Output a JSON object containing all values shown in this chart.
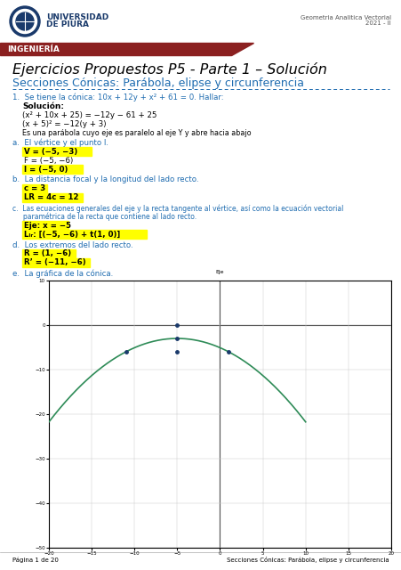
{
  "title_main": "Ejercicios Propuestos P5 - Parte 1 – Solución",
  "subtitle": "Secciones Cónicas: Parábola, elipse y circunferencia",
  "header_ingenieria": "INGENIERÍA",
  "header_course": "Geometria Analitica Vectorial\n2021 - II",
  "univ_name1": "UNIVERSIDAD",
  "univ_name2": "DE PIURA",
  "problem_text": "1.  Se tiene la cónica: 10x + 12y + x² + 61 = 0. Hallar:",
  "solution_label": "Solución:",
  "step1": "(x² + 10x + 25) = −12y − 61 + 25",
  "step2": "(x + 5)² = −12(y + 3)",
  "step3": "Es una parábola cuyo eje es paralelo al eje Y y abre hacia abajo",
  "part_a_label": "a.  El vértice y el punto I.",
  "V_eq": "V = (−5, −3)",
  "F_eq": "F = (−5, −6)",
  "I_eq": "I = (−5, 0)",
  "part_b_label": "b.  La distancia focal y la longitud del lado recto.",
  "c_eq": "c = 3",
  "LR_eq": "LR = 4c = 12",
  "part_c_line1": "c.  Las ecuaciones generales del eje y la recta tangente al vértice, así como la ecuación vectorial",
  "part_c_line2": "     paramétrica de la recta que contiene al lado recto.",
  "Eje_eq": "Eje: x = −5",
  "LLR_eq": "Lₗᵣ: [(−5, −6) + t(1, 0)]",
  "part_d_label": "d.  Los extremos del lado recto.",
  "R_eq": "R = (1, −6)",
  "Rprime_eq": "R’ = (−11, −6)",
  "part_e_label": "e.  La gráfica de la cónica.",
  "footer_left": "Página 1 de 20",
  "footer_right": "Secciones Cónicas: Parábola, elipse y circunferencia",
  "highlight_color": "#FFFF00",
  "blue_text_color": "#1F6CB0",
  "dark_red_header": "#8B2020",
  "green_curve_color": "#2E8B57",
  "axis_color": "#333333",
  "grid_color": "#CCCCCC",
  "dot_color": "#1a3a6b",
  "plot_xlim": [
    -20,
    20
  ],
  "plot_ylim": [
    -50,
    10
  ],
  "page_bg": "#FFFFFF"
}
